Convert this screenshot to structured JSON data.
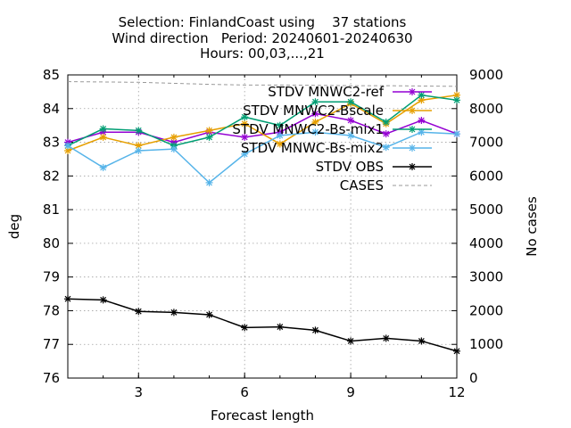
{
  "chart_data": {
    "type": "line",
    "title_lines": [
      "Selection: FinlandCoast using    37 stations",
      "Wind direction   Period: 20240601-20240630",
      "Hours: 00,03,...,21"
    ],
    "xlabel": "Forecast length",
    "ylabel": "deg",
    "y2label": "No cases",
    "xlim": [
      1,
      12
    ],
    "ylim": [
      76,
      85
    ],
    "y2lim": [
      0,
      9000
    ],
    "xticks": [
      3,
      6,
      9,
      12
    ],
    "yticks": [
      76,
      77,
      78,
      79,
      80,
      81,
      82,
      83,
      84,
      85
    ],
    "y2ticks": [
      0,
      1000,
      2000,
      3000,
      4000,
      5000,
      6000,
      7000,
      8000,
      9000
    ],
    "grid": true,
    "legend_position": "top-right",
    "x": [
      1,
      2,
      3,
      4,
      5,
      6,
      7,
      8,
      9,
      10,
      11,
      12
    ],
    "series": [
      {
        "name": "STDV MNWC2-ref",
        "color": "#9400d3",
        "marker": "asterisk",
        "axis": "y1",
        "values": [
          83.0,
          83.3,
          83.3,
          83.0,
          83.3,
          83.15,
          83.3,
          83.85,
          83.65,
          83.25,
          83.65,
          83.25
        ]
      },
      {
        "name": "STDV MNWC2-Bscale",
        "color": "#e69f00",
        "marker": "asterisk",
        "axis": "y1",
        "values": [
          82.75,
          83.15,
          82.9,
          83.15,
          83.35,
          83.55,
          82.95,
          83.6,
          84.15,
          83.55,
          84.25,
          84.4
        ]
      },
      {
        "name": "STDV MNWC2-Bs-mix1",
        "color": "#009e73",
        "marker": "asterisk",
        "axis": "y1",
        "values": [
          82.9,
          83.4,
          83.35,
          82.9,
          83.15,
          83.75,
          83.5,
          84.2,
          84.2,
          83.6,
          84.4,
          84.25
        ]
      },
      {
        "name": "STDV MNWC-Bs-mix2",
        "color": "#56b4e9",
        "marker": "asterisk",
        "axis": "y1",
        "values": [
          82.9,
          82.25,
          82.75,
          82.8,
          81.8,
          82.65,
          83.2,
          83.3,
          83.2,
          82.85,
          83.3,
          83.25
        ]
      },
      {
        "name": "STDV OBS",
        "color": "#000000",
        "marker": "asterisk",
        "axis": "y1",
        "values": [
          78.35,
          78.32,
          77.98,
          77.95,
          77.88,
          77.5,
          77.52,
          77.42,
          77.1,
          77.18,
          77.1,
          76.8
        ]
      },
      {
        "name": "CASES",
        "color": "#999999",
        "marker": "none",
        "dashed": true,
        "axis": "y2",
        "values": [
          8800,
          8790,
          8780,
          8750,
          8720,
          8700,
          8700,
          8690,
          8680,
          8680,
          8670,
          8660
        ]
      }
    ]
  }
}
